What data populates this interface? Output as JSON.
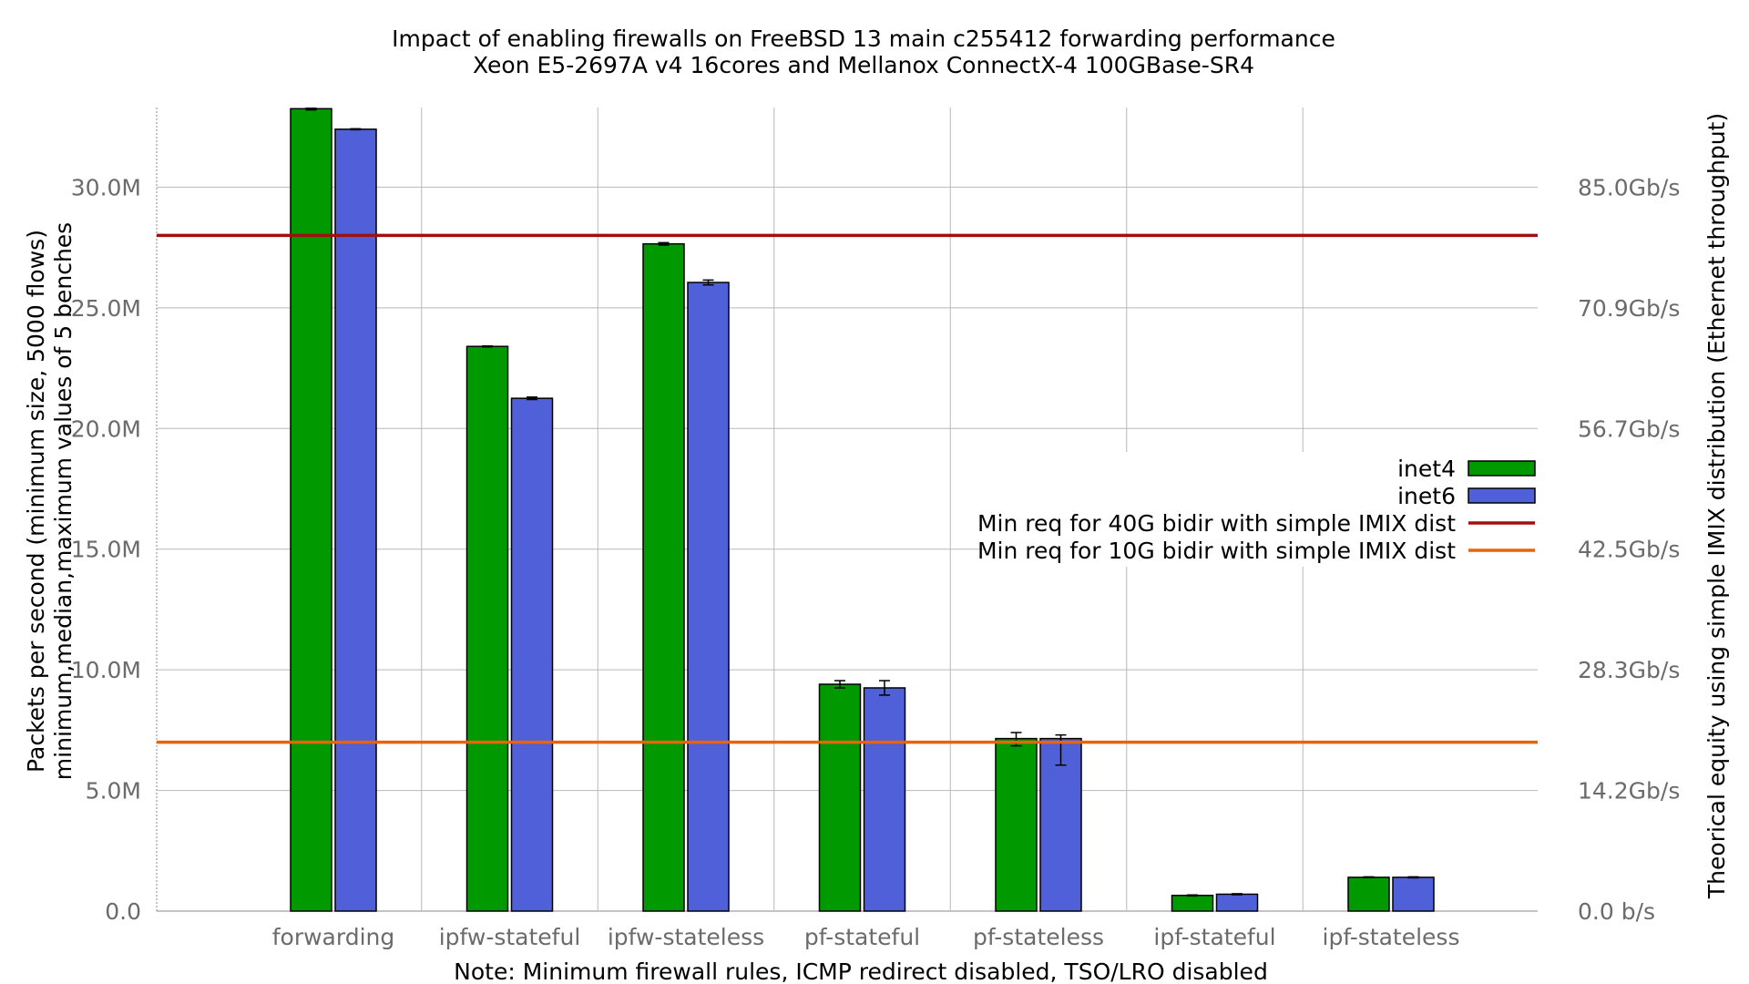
{
  "chart_data": {
    "type": "bar",
    "title": "Impact of enabling firewalls on FreeBSD 13 main c255412 forwarding performance",
    "subtitle": "Xeon E5-2697A v4 16cores and Mellanox ConnectX-4 100GBase-SR4",
    "xlabel": "Note: Minimum firewall rules, ICMP redirect disabled, TSO/LRO disabled",
    "ylabel": "Packets per second (minimum size, 5000 flows)",
    "ylabel2": "minimum,median,maximum values of 5 benches",
    "y2label": "Theorical equity using simple IMIX distribution (Ethernet throughput)",
    "ylim": [
      0,
      33300000
    ],
    "grid": true,
    "legend_position": "right",
    "categories": [
      "forwarding",
      "ipfw-stateful",
      "ipfw-stateless",
      "pf-stateful",
      "pf-stateless",
      "ipf-stateful",
      "ipf-stateless"
    ],
    "series": [
      {
        "name": "inet4",
        "color": "#009a00",
        "values": [
          33250000,
          23400000,
          27650000,
          9400000,
          7150000,
          650000,
          1400000
        ],
        "min": [
          33200000,
          23380000,
          27600000,
          9250000,
          6850000,
          630000,
          1390000
        ],
        "max": [
          33270000,
          23420000,
          27700000,
          9550000,
          7400000,
          670000,
          1420000
        ]
      },
      {
        "name": "inet6",
        "color": "#5060d8",
        "values": [
          32400000,
          21250000,
          26050000,
          9250000,
          7150000,
          700000,
          1400000
        ],
        "min": [
          32380000,
          21200000,
          25950000,
          8950000,
          6050000,
          680000,
          1380000
        ],
        "max": [
          32420000,
          21300000,
          26150000,
          9550000,
          7300000,
          720000,
          1420000
        ]
      }
    ],
    "reference_lines": [
      {
        "name": "Min req for 40G bidir with simple IMIX dist",
        "value": 28000000,
        "color": "#a01010"
      },
      {
        "name": "Min req for 10G bidir with simple IMIX dist",
        "value": 7000000,
        "color": "#e8640c"
      }
    ],
    "y_ticks": [
      {
        "value": 0,
        "label": "0.0"
      },
      {
        "value": 5000000,
        "label": "5.0M"
      },
      {
        "value": 10000000,
        "label": "10.0M"
      },
      {
        "value": 15000000,
        "label": "15.0M"
      },
      {
        "value": 20000000,
        "label": "20.0M"
      },
      {
        "value": 25000000,
        "label": "25.0M"
      },
      {
        "value": 30000000,
        "label": "30.0M"
      }
    ],
    "y2_ticks": [
      {
        "value": 0,
        "label": "0.0 b/s"
      },
      {
        "value": 5000000,
        "label": "14.2Gb/s"
      },
      {
        "value": 10000000,
        "label": "28.3Gb/s"
      },
      {
        "value": 15000000,
        "label": "42.5Gb/s"
      },
      {
        "value": 20000000,
        "label": "56.7Gb/s"
      },
      {
        "value": 25000000,
        "label": "70.9Gb/s"
      },
      {
        "value": 30000000,
        "label": "85.0Gb/s"
      }
    ]
  }
}
